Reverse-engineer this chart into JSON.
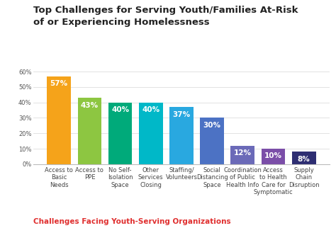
{
  "title": "Top Challenges for Serving Youth/Families At-Risk\nof or Experiencing Homelessness",
  "subtitle": "Challenges Facing Youth-Serving Organizations",
  "categories": [
    "Access to\nBasic\nNeeds",
    "Access to\nPPE",
    "No Self-\nIsolation\nSpace",
    "Other\nServices\nClosing",
    "Staffing/\nVolunteers",
    "Social\nDistancing\nSpace",
    "Coordination\nof Public\nHealth Info",
    "Access\nto Health\nCare for\nSymptomatic",
    "Supply\nChain\nDisruption"
  ],
  "values": [
    57,
    43,
    40,
    40,
    37,
    30,
    12,
    10,
    8
  ],
  "bar_colors": [
    "#F5A31A",
    "#8DC641",
    "#00AA7A",
    "#00B8C8",
    "#29A8E0",
    "#4C72C4",
    "#6B6AB8",
    "#7B4EA8",
    "#2E2E72"
  ],
  "label_color": "#FFFFFF",
  "title_fontsize": 9.5,
  "subtitle_color": "#E03030",
  "subtitle_fontsize": 7.5,
  "value_fontsize": 7.5,
  "tick_fontsize": 6.0,
  "ylim": [
    0,
    65
  ],
  "yticks": [
    0,
    10,
    20,
    30,
    40,
    50,
    60
  ],
  "background_color": "#FFFFFF",
  "grid_color": "#DDDDDD"
}
